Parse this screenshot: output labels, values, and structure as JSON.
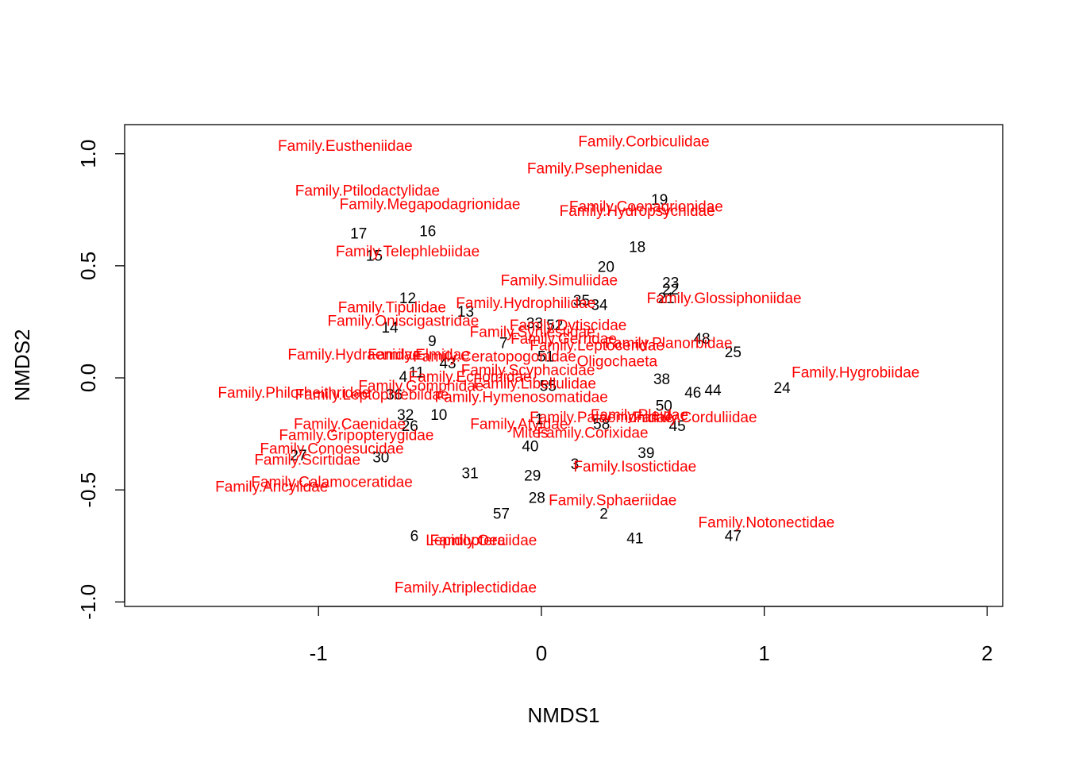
{
  "chart_data": {
    "type": "scatter",
    "title": "",
    "xlabel": "NMDS1",
    "ylabel": "NMDS2",
    "xlim": [
      -1.87,
      2.07
    ],
    "ylim": [
      -1.02,
      1.13
    ],
    "xticks": [
      -1,
      0,
      1,
      2
    ],
    "yticks": [
      -1.0,
      -0.5,
      0.0,
      0.5,
      1.0
    ],
    "xtick_labels": [
      "-1",
      "0",
      "1",
      "2"
    ],
    "ytick_labels": [
      "-1.0",
      "-0.5",
      "0.0",
      "0.5",
      "1.0"
    ],
    "colors": {
      "sites": "#000000",
      "species": "#ff0000"
    },
    "sites": [
      {
        "label": "17",
        "x": -0.82,
        "y": 0.64
      },
      {
        "label": "16",
        "x": -0.51,
        "y": 0.65
      },
      {
        "label": "15",
        "x": -0.75,
        "y": 0.54
      },
      {
        "label": "19",
        "x": 0.53,
        "y": 0.79
      },
      {
        "label": "18",
        "x": 0.43,
        "y": 0.58
      },
      {
        "label": "20",
        "x": 0.29,
        "y": 0.49
      },
      {
        "label": "23",
        "x": 0.58,
        "y": 0.42
      },
      {
        "label": "22",
        "x": 0.58,
        "y": 0.39
      },
      {
        "label": "21",
        "x": 0.56,
        "y": 0.35
      },
      {
        "label": "12",
        "x": -0.6,
        "y": 0.35
      },
      {
        "label": "13",
        "x": -0.34,
        "y": 0.29
      },
      {
        "label": "14",
        "x": -0.68,
        "y": 0.22
      },
      {
        "label": "35",
        "x": 0.18,
        "y": 0.34
      },
      {
        "label": "34",
        "x": 0.26,
        "y": 0.32
      },
      {
        "label": "33",
        "x": -0.03,
        "y": 0.24
      },
      {
        "label": "52",
        "x": 0.06,
        "y": 0.23
      },
      {
        "label": "48",
        "x": 0.72,
        "y": 0.17
      },
      {
        "label": "25",
        "x": 0.86,
        "y": 0.11
      },
      {
        "label": "9",
        "x": -0.49,
        "y": 0.16
      },
      {
        "label": "7",
        "x": -0.17,
        "y": 0.15
      },
      {
        "label": "51",
        "x": 0.02,
        "y": 0.09
      },
      {
        "label": "11",
        "x": -0.56,
        "y": 0.02
      },
      {
        "label": "4",
        "x": -0.62,
        "y": 0.0
      },
      {
        "label": "43",
        "x": -0.42,
        "y": 0.06
      },
      {
        "label": "38",
        "x": 0.54,
        "y": -0.01
      },
      {
        "label": "55",
        "x": 0.03,
        "y": -0.04
      },
      {
        "label": "46",
        "x": 0.68,
        "y": -0.07
      },
      {
        "label": "44",
        "x": 0.77,
        "y": -0.06
      },
      {
        "label": "24",
        "x": 1.08,
        "y": -0.05
      },
      {
        "label": "50",
        "x": 0.55,
        "y": -0.13
      },
      {
        "label": "36",
        "x": -0.66,
        "y": -0.08
      },
      {
        "label": "32",
        "x": -0.61,
        "y": -0.17
      },
      {
        "label": "26",
        "x": -0.59,
        "y": -0.22
      },
      {
        "label": "10",
        "x": -0.46,
        "y": -0.17
      },
      {
        "label": "1",
        "x": -0.01,
        "y": -0.19
      },
      {
        "label": "58",
        "x": 0.27,
        "y": -0.21
      },
      {
        "label": "45",
        "x": 0.61,
        "y": -0.22
      },
      {
        "label": "40",
        "x": -0.05,
        "y": -0.31
      },
      {
        "label": "39",
        "x": 0.47,
        "y": -0.34
      },
      {
        "label": "27",
        "x": -1.09,
        "y": -0.35
      },
      {
        "label": "30",
        "x": -0.72,
        "y": -0.36
      },
      {
        "label": "3",
        "x": 0.15,
        "y": -0.39
      },
      {
        "label": "31",
        "x": -0.32,
        "y": -0.43
      },
      {
        "label": "29",
        "x": -0.04,
        "y": -0.44
      },
      {
        "label": "28",
        "x": -0.02,
        "y": -0.54
      },
      {
        "label": "57",
        "x": -0.18,
        "y": -0.61
      },
      {
        "label": "2",
        "x": 0.28,
        "y": -0.61
      },
      {
        "label": "6",
        "x": -0.57,
        "y": -0.71
      },
      {
        "label": "41",
        "x": 0.42,
        "y": -0.72
      },
      {
        "label": "47",
        "x": 0.86,
        "y": -0.71
      }
    ],
    "species": [
      {
        "label": "Family.Eustheniidae",
        "x": -0.88,
        "y": 1.03
      },
      {
        "label": "Family.Corbiculidae",
        "x": 0.46,
        "y": 1.05
      },
      {
        "label": "Family.Psephenidae",
        "x": 0.24,
        "y": 0.93
      },
      {
        "label": "Family.Ptilodactylidae",
        "x": -0.78,
        "y": 0.83
      },
      {
        "label": "Family.Megapodagrionidae",
        "x": -0.5,
        "y": 0.77
      },
      {
        "label": "Family.Coenagrionidae",
        "x": 0.47,
        "y": 0.76
      },
      {
        "label": "Family.Hydropsychidae",
        "x": 0.43,
        "y": 0.74
      },
      {
        "label": "Family.Telephlebiidae",
        "x": -0.6,
        "y": 0.56
      },
      {
        "label": "Family.Simuliidae",
        "x": 0.08,
        "y": 0.43
      },
      {
        "label": "Family.Glossiphoniidae",
        "x": 0.82,
        "y": 0.35
      },
      {
        "label": "Family.Hydrophilidae",
        "x": -0.07,
        "y": 0.33
      },
      {
        "label": "Family.Tipulidae",
        "x": -0.67,
        "y": 0.31
      },
      {
        "label": "Family.Oniscigastridae",
        "x": -0.62,
        "y": 0.25
      },
      {
        "label": "Family.Dytiscidae",
        "x": 0.12,
        "y": 0.23
      },
      {
        "label": "Family.Synlestidae",
        "x": -0.04,
        "y": 0.2
      },
      {
        "label": "Family.Gerridae",
        "x": 0.1,
        "y": 0.17
      },
      {
        "label": "Family.Planorbidae",
        "x": 0.57,
        "y": 0.15
      },
      {
        "label": "Family.Leptoceridae",
        "x": 0.25,
        "y": 0.14
      },
      {
        "label": "Family.Hydraenidae",
        "x": -0.84,
        "y": 0.1
      },
      {
        "label": "Family.Elmidae",
        "x": -0.55,
        "y": 0.1
      },
      {
        "label": "Family.Ceratopogonidae",
        "x": -0.21,
        "y": 0.09
      },
      {
        "label": "Oligochaeta",
        "x": 0.34,
        "y": 0.07
      },
      {
        "label": "Family.Scyphacidae",
        "x": -0.06,
        "y": 0.03
      },
      {
        "label": "Family.Hygrobiidae",
        "x": 1.41,
        "y": 0.02
      },
      {
        "label": "Family.Ecnomidae",
        "x": -0.32,
        "y": 0.0
      },
      {
        "label": "Family.Libellulidae",
        "x": -0.03,
        "y": -0.03
      },
      {
        "label": "Family.Gomphidae",
        "x": -0.54,
        "y": -0.04
      },
      {
        "label": "Family.Hymenosomatidae",
        "x": -0.09,
        "y": -0.09
      },
      {
        "label": "Family.Philorheithridae",
        "x": -1.11,
        "y": -0.07
      },
      {
        "label": "Family.Leptophlebiidae",
        "x": -0.76,
        "y": -0.08
      },
      {
        "label": "Family.Caenidae",
        "x": -0.86,
        "y": -0.21
      },
      {
        "label": "Family.Atyidae",
        "x": -0.1,
        "y": -0.21
      },
      {
        "label": "Family.Palaemonidae",
        "x": 0.27,
        "y": -0.18
      },
      {
        "label": "Family.Pleidae",
        "x": 0.44,
        "y": -0.17
      },
      {
        "label": "Family.Corduliidae",
        "x": 0.69,
        "y": -0.18
      },
      {
        "label": "Mites",
        "x": -0.05,
        "y": -0.25
      },
      {
        "label": "Family.Corixidae",
        "x": 0.23,
        "y": -0.25
      },
      {
        "label": "Family.Gripopterygidae",
        "x": -0.83,
        "y": -0.26
      },
      {
        "label": "Family.Conoesucidae",
        "x": -0.94,
        "y": -0.32
      },
      {
        "label": "Family.Scirtidae",
        "x": -1.05,
        "y": -0.37
      },
      {
        "label": "Family.Isostictidae",
        "x": 0.42,
        "y": -0.4
      },
      {
        "label": "Family.Calamoceratidae",
        "x": -0.94,
        "y": -0.47
      },
      {
        "label": "Family.Ancylidae",
        "x": -1.21,
        "y": -0.49
      },
      {
        "label": "Family.Sphaeriidae",
        "x": 0.32,
        "y": -0.55
      },
      {
        "label": "Family.Notonectidae",
        "x": 1.01,
        "y": -0.65
      },
      {
        "label": "Family.Oeciidae",
        "x": -0.26,
        "y": -0.73
      },
      {
        "label": "Lepidoptera",
        "x": -0.34,
        "y": -0.73
      },
      {
        "label": "Family.Atriplectididae",
        "x": -0.34,
        "y": -0.94
      }
    ]
  }
}
